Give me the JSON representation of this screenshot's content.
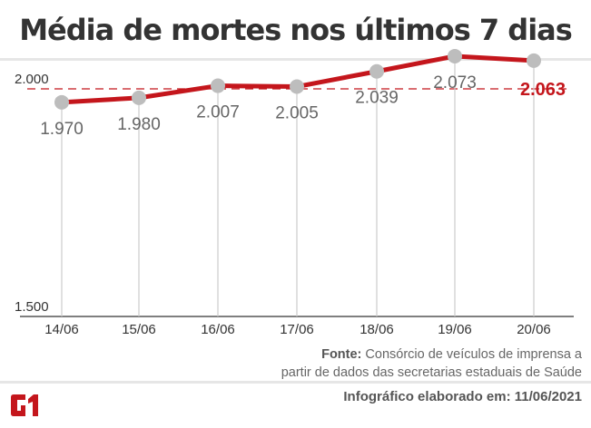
{
  "title": "Média de mortes nos últimos 7 dias",
  "chart_data": {
    "type": "line",
    "categories": [
      "14/06",
      "15/06",
      "16/06",
      "17/06",
      "18/06",
      "19/06",
      "20/06"
    ],
    "values": [
      1970,
      1980,
      2007,
      2005,
      2039,
      2073,
      2063
    ],
    "labels": [
      "1.970",
      "1.980",
      "2.007",
      "2.005",
      "2.039",
      "2.073",
      "2.063"
    ],
    "ytick_labels": [
      "1.500",
      "2.000"
    ],
    "yticks": [
      1500,
      2000
    ],
    "reference_line": 2000,
    "ylim": [
      1500,
      2100
    ],
    "line_color": "#c4161c",
    "marker_color": "#bdbdbd",
    "highlight_last": true
  },
  "footer": {
    "source_label": "Fonte:",
    "source_text": " Consórcio de veículos de imprensa a",
    "source_text2": "partir de dados das secretarias estaduais de Saúde",
    "made": "Infográfico elaborado em: 11/06/2021",
    "logo": "G1"
  }
}
